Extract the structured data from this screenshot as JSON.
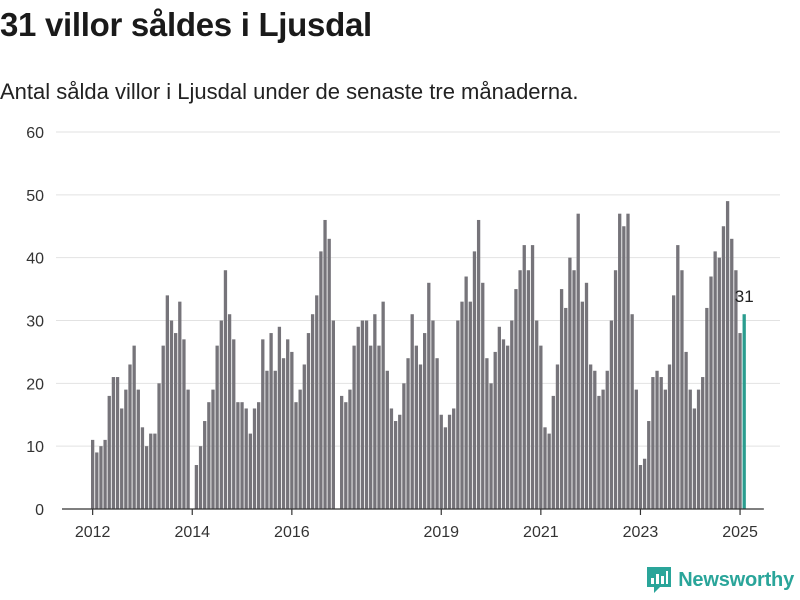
{
  "title": "31 villor såldes i Ljusdal",
  "subtitle": "Antal sålda villor i Ljusdal under de senaste tre månaderna.",
  "brand": "Newsworthy",
  "colors": {
    "bar": "#76747a",
    "highlight": "#2a9d8f",
    "grid": "#e2e2e2",
    "brand": "#2aa59a"
  },
  "chart_data": {
    "type": "bar",
    "x_start": "2012-01",
    "x_ticks": [
      "2012",
      "2014",
      "2016",
      "2019",
      "2021",
      "2023",
      "2025"
    ],
    "ylim": [
      0,
      60
    ],
    "y_ticks": [
      0,
      10,
      20,
      30,
      40,
      50,
      60
    ],
    "grid": true,
    "highlight_label": "31",
    "values": [
      11,
      9,
      10,
      11,
      18,
      21,
      21,
      16,
      19,
      23,
      26,
      19,
      13,
      10,
      12,
      12,
      20,
      26,
      34,
      30,
      28,
      33,
      27,
      19,
      null,
      7,
      10,
      14,
      17,
      19,
      26,
      30,
      38,
      31,
      27,
      17,
      17,
      16,
      12,
      16,
      17,
      27,
      22,
      28,
      22,
      29,
      24,
      27,
      25,
      17,
      19,
      23,
      28,
      31,
      34,
      41,
      46,
      43,
      30,
      null,
      18,
      17,
      19,
      26,
      29,
      30,
      30,
      26,
      31,
      26,
      33,
      22,
      16,
      14,
      15,
      20,
      24,
      31,
      26,
      23,
      28,
      36,
      30,
      24,
      15,
      13,
      15,
      16,
      30,
      33,
      37,
      33,
      41,
      46,
      36,
      24,
      20,
      25,
      29,
      27,
      26,
      30,
      35,
      38,
      42,
      38,
      42,
      30,
      26,
      13,
      12,
      18,
      23,
      35,
      32,
      40,
      38,
      47,
      33,
      36,
      23,
      22,
      18,
      19,
      22,
      30,
      38,
      47,
      45,
      47,
      31,
      19,
      7,
      8,
      14,
      21,
      22,
      21,
      19,
      23,
      34,
      42,
      38,
      25,
      19,
      16,
      19,
      21,
      32,
      37,
      41,
      40,
      45,
      49,
      43,
      38,
      28,
      31
    ]
  }
}
